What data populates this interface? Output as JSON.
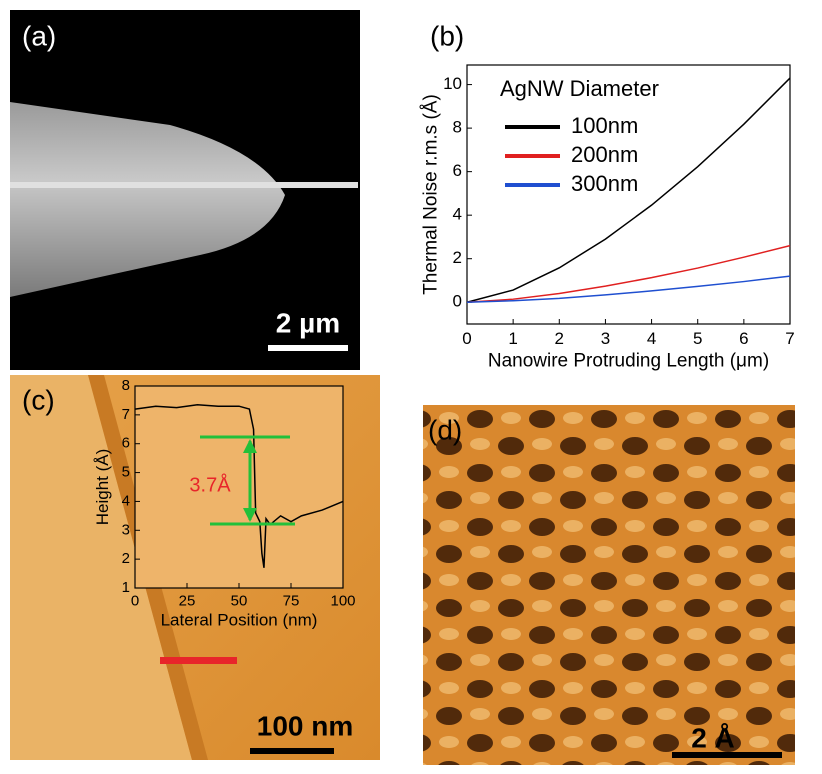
{
  "panels": {
    "a": {
      "label": "(a)",
      "scale_bar": "2 µm"
    },
    "c": {
      "label": "(c)",
      "scale_bar": "100 nm"
    },
    "d": {
      "label": "(d)",
      "scale_bar": "2 Å"
    }
  },
  "chart_data": [
    {
      "type": "line",
      "panel": "(b)",
      "xlabel": "Nanowire Protruding Length (μm)",
      "ylabel": "Thermal Noise r.m.s (Å)",
      "legend_title": "AgNW Diameter",
      "x": [
        0,
        1,
        2,
        3,
        4,
        5,
        6,
        7
      ],
      "series": [
        {
          "name": "100nm",
          "color": "#000000",
          "values": [
            0,
            0.56,
            1.58,
            2.9,
            4.46,
            6.23,
            8.18,
            10.3
          ]
        },
        {
          "name": "200nm",
          "color": "#e02020",
          "values": [
            0,
            0.14,
            0.4,
            0.74,
            1.13,
            1.57,
            2.07,
            2.6
          ]
        },
        {
          "name": "300nm",
          "color": "#1f4fd0",
          "values": [
            0,
            0.07,
            0.18,
            0.34,
            0.52,
            0.73,
            0.95,
            1.2
          ]
        }
      ],
      "xlim": [
        0,
        7
      ],
      "xticks": [
        0,
        1,
        2,
        3,
        4,
        5,
        6,
        7
      ],
      "ylim": [
        -1,
        10.9
      ],
      "yticks": [
        0,
        2,
        4,
        6,
        8,
        10
      ]
    },
    {
      "type": "line",
      "xlabel": "Lateral Position (nm)",
      "ylabel": "Height (Å)",
      "annotation": "3.7Å",
      "x": [
        0,
        10,
        20,
        30,
        40,
        50,
        55,
        57,
        58,
        60,
        61,
        62,
        63,
        65,
        70,
        75,
        80,
        90,
        100
      ],
      "series": [
        {
          "color": "#000000",
          "values": [
            7.2,
            7.3,
            7.25,
            7.35,
            7.3,
            7.3,
            7.2,
            6.5,
            3.6,
            3.3,
            2.2,
            1.7,
            3.4,
            3.2,
            3.5,
            3.3,
            3.5,
            3.7,
            4.0
          ]
        }
      ],
      "xlim": [
        0,
        100
      ],
      "xticks": [
        0,
        25,
        50,
        75,
        100
      ],
      "ylim": [
        1,
        8
      ],
      "yticks": [
        1,
        2,
        3,
        4,
        5,
        6,
        7,
        8
      ]
    }
  ]
}
